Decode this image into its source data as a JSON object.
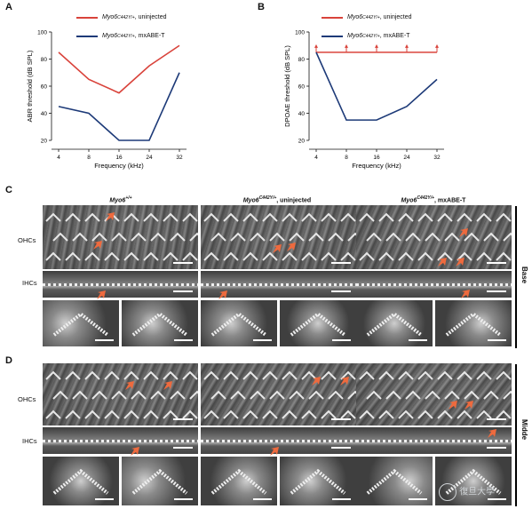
{
  "panels": {
    "A": "A",
    "B": "B",
    "C": "C",
    "D": "D"
  },
  "legend": {
    "series1_prefix": "Myo6",
    "series1_sup": "C442Y/+",
    "series1_suffix": ", uninjected",
    "series2_prefix": "Myo6",
    "series2_sup": "C442Y/+",
    "series2_suffix": ", mxABE-T"
  },
  "colors": {
    "uninjected": "#d9433b",
    "mxabe": "#1d3a78",
    "arrow": "#ee6a3e"
  },
  "chart_data": [
    {
      "type": "line",
      "panel": "A",
      "ylabel": "ABR threshold (dB SPL)",
      "xlabel": "Frequency (kHz)",
      "categories": [
        "4",
        "8",
        "16",
        "24",
        "32"
      ],
      "ylim": [
        20,
        100
      ],
      "yticks": [
        20,
        40,
        60,
        80,
        100
      ],
      "series": [
        {
          "name": "Myo6C442Y/+, uninjected",
          "values": [
            85,
            65,
            55,
            75,
            90
          ]
        },
        {
          "name": "Myo6C442Y/+, mxABE-T",
          "values": [
            45,
            40,
            20,
            20,
            70
          ]
        }
      ]
    },
    {
      "type": "line",
      "panel": "B",
      "ylabel": "DPOAE threshold (dB SPL)",
      "xlabel": "Frequency (kHz)",
      "categories": [
        "4",
        "8",
        "16",
        "24",
        "32"
      ],
      "ylim": [
        20,
        100
      ],
      "yticks": [
        20,
        40,
        60,
        80,
        100
      ],
      "series": [
        {
          "name": "Myo6C442Y/+, uninjected",
          "values": [
            85,
            85,
            85,
            85,
            85
          ],
          "markers": "up-arrow"
        },
        {
          "name": "Myo6C442Y/+, mxABE-T",
          "values": [
            85,
            35,
            35,
            45,
            65
          ]
        }
      ]
    }
  ],
  "panelC": {
    "col1_prefix": "Myo6",
    "col1_sup": "+/+",
    "col1_suffix": "",
    "col2_prefix": "Myo6",
    "col2_sup": "C442Y/+",
    "col2_suffix": ", uninjected",
    "col3_prefix": "Myo6",
    "col3_sup": "C442Y/+",
    "col3_suffix": ", mxABE-T",
    "row1": "OHCs",
    "row2": "IHCs",
    "side": "Base"
  },
  "panelD": {
    "row1": "OHCs",
    "row2": "IHCs",
    "side": "Midde"
  },
  "watermark": "復旦大學"
}
